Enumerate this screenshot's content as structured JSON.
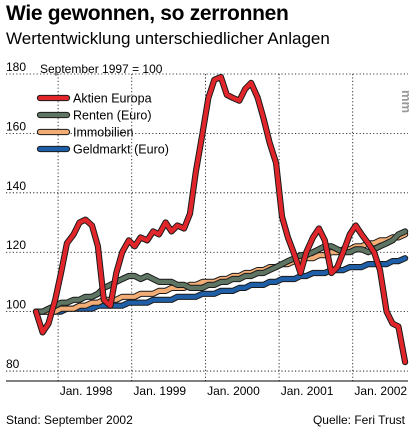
{
  "header": {
    "title": "Wie gewonnen, so zerronnen",
    "subtitle": "Wertentwicklung unterschiedlicher Anlagen"
  },
  "footer": {
    "stand": "Stand: September 2002",
    "source": "Quelle: Feri Trust"
  },
  "watermark": "mm",
  "chart_data": {
    "type": "line",
    "annotation": "September 1997 = 100",
    "ylim": [
      78,
      180
    ],
    "yticks": [
      80,
      100,
      120,
      140,
      160,
      180
    ],
    "xlim": [
      1997.7,
      2002.75
    ],
    "xticks": [
      {
        "label": "Jan. 1998",
        "x": 1998.0
      },
      {
        "label": "Jan. 1999",
        "x": 1999.0
      },
      {
        "label": "Jan. 2000",
        "x": 2000.0
      },
      {
        "label": "Jan. 2001",
        "x": 2001.0
      },
      {
        "label": "Jan. 2002",
        "x": 2002.0
      }
    ],
    "grid": true,
    "legend_position": "top-left",
    "series": [
      {
        "name": "Aktien Europa",
        "color": "#e0262b",
        "points": [
          [
            1997.7,
            100
          ],
          [
            1997.79,
            93
          ],
          [
            1997.87,
            96
          ],
          [
            1997.96,
            104
          ],
          [
            1998.04,
            113
          ],
          [
            1998.12,
            123
          ],
          [
            1998.21,
            126
          ],
          [
            1998.29,
            130
          ],
          [
            1998.37,
            131
          ],
          [
            1998.46,
            129
          ],
          [
            1998.54,
            122
          ],
          [
            1998.62,
            104
          ],
          [
            1998.71,
            102
          ],
          [
            1998.79,
            113
          ],
          [
            1998.87,
            120
          ],
          [
            1998.96,
            124
          ],
          [
            1999.04,
            122
          ],
          [
            1999.12,
            125
          ],
          [
            1999.21,
            124
          ],
          [
            1999.29,
            127
          ],
          [
            1999.37,
            126
          ],
          [
            1999.46,
            130
          ],
          [
            1999.54,
            127
          ],
          [
            1999.62,
            129
          ],
          [
            1999.71,
            128
          ],
          [
            1999.79,
            133
          ],
          [
            1999.87,
            147
          ],
          [
            1999.96,
            160
          ],
          [
            2000.04,
            172
          ],
          [
            2000.12,
            178
          ],
          [
            2000.21,
            179
          ],
          [
            2000.29,
            173
          ],
          [
            2000.37,
            172
          ],
          [
            2000.46,
            171
          ],
          [
            2000.54,
            175
          ],
          [
            2000.62,
            177
          ],
          [
            2000.71,
            172
          ],
          [
            2000.79,
            165
          ],
          [
            2000.87,
            157
          ],
          [
            2000.96,
            150
          ],
          [
            2001.04,
            132
          ],
          [
            2001.12,
            125
          ],
          [
            2001.21,
            119
          ],
          [
            2001.29,
            113
          ],
          [
            2001.37,
            120
          ],
          [
            2001.46,
            125
          ],
          [
            2001.54,
            128
          ],
          [
            2001.62,
            124
          ],
          [
            2001.71,
            113
          ],
          [
            2001.79,
            115
          ],
          [
            2001.87,
            120
          ],
          [
            2001.96,
            126
          ],
          [
            2002.04,
            129
          ],
          [
            2002.12,
            126
          ],
          [
            2002.21,
            123
          ],
          [
            2002.29,
            120
          ],
          [
            2002.37,
            114
          ],
          [
            2002.46,
            100
          ],
          [
            2002.54,
            96
          ],
          [
            2002.62,
            95
          ],
          [
            2002.71,
            83
          ]
        ]
      },
      {
        "name": "Renten (Euro)",
        "color": "#5e7563",
        "points": [
          [
            1997.7,
            100
          ],
          [
            1997.79,
            100
          ],
          [
            1997.87,
            101
          ],
          [
            1997.96,
            102
          ],
          [
            1998.04,
            103
          ],
          [
            1998.12,
            103
          ],
          [
            1998.21,
            104
          ],
          [
            1998.29,
            104
          ],
          [
            1998.37,
            105
          ],
          [
            1998.46,
            105
          ],
          [
            1998.54,
            106
          ],
          [
            1998.62,
            108
          ],
          [
            1998.71,
            109
          ],
          [
            1998.79,
            110
          ],
          [
            1998.87,
            111
          ],
          [
            1998.96,
            112
          ],
          [
            1999.04,
            112
          ],
          [
            1999.12,
            111
          ],
          [
            1999.21,
            112
          ],
          [
            1999.29,
            111
          ],
          [
            1999.37,
            110
          ],
          [
            1999.46,
            110
          ],
          [
            1999.54,
            110
          ],
          [
            1999.62,
            109
          ],
          [
            1999.71,
            109
          ],
          [
            1999.79,
            108
          ],
          [
            1999.87,
            108
          ],
          [
            1999.96,
            108
          ],
          [
            2000.04,
            109
          ],
          [
            2000.12,
            109
          ],
          [
            2000.21,
            110
          ],
          [
            2000.29,
            110
          ],
          [
            2000.37,
            111
          ],
          [
            2000.46,
            111
          ],
          [
            2000.54,
            112
          ],
          [
            2000.62,
            112
          ],
          [
            2000.71,
            113
          ],
          [
            2000.79,
            113
          ],
          [
            2000.87,
            114
          ],
          [
            2000.96,
            115
          ],
          [
            2001.04,
            116
          ],
          [
            2001.12,
            117
          ],
          [
            2001.21,
            118
          ],
          [
            2001.29,
            119
          ],
          [
            2001.37,
            119
          ],
          [
            2001.46,
            120
          ],
          [
            2001.54,
            121
          ],
          [
            2001.62,
            122
          ],
          [
            2001.71,
            122
          ],
          [
            2001.79,
            121
          ],
          [
            2001.87,
            120
          ],
          [
            2001.96,
            120
          ],
          [
            2002.04,
            121
          ],
          [
            2002.12,
            121
          ],
          [
            2002.21,
            120
          ],
          [
            2002.29,
            121
          ],
          [
            2002.37,
            122
          ],
          [
            2002.46,
            123
          ],
          [
            2002.54,
            124
          ],
          [
            2002.62,
            126
          ],
          [
            2002.71,
            127
          ]
        ]
      },
      {
        "name": "Immobilien",
        "color": "#f2ad76",
        "points": [
          [
            1997.7,
            100
          ],
          [
            1997.79,
            100
          ],
          [
            1997.87,
            100
          ],
          [
            1997.96,
            100
          ],
          [
            1998.04,
            101
          ],
          [
            1998.12,
            101
          ],
          [
            1998.21,
            101
          ],
          [
            1998.29,
            102
          ],
          [
            1998.37,
            102
          ],
          [
            1998.46,
            103
          ],
          [
            1998.54,
            103
          ],
          [
            1998.62,
            104
          ],
          [
            1998.71,
            104
          ],
          [
            1998.79,
            104
          ],
          [
            1998.87,
            105
          ],
          [
            1998.96,
            105
          ],
          [
            1999.04,
            105
          ],
          [
            1999.12,
            106
          ],
          [
            1999.21,
            106
          ],
          [
            1999.29,
            106
          ],
          [
            1999.37,
            107
          ],
          [
            1999.46,
            107
          ],
          [
            1999.54,
            108
          ],
          [
            1999.62,
            108
          ],
          [
            1999.71,
            108
          ],
          [
            1999.79,
            109
          ],
          [
            1999.87,
            109
          ],
          [
            1999.96,
            110
          ],
          [
            2000.04,
            110
          ],
          [
            2000.12,
            110
          ],
          [
            2000.21,
            111
          ],
          [
            2000.29,
            111
          ],
          [
            2000.37,
            112
          ],
          [
            2000.46,
            112
          ],
          [
            2000.54,
            113
          ],
          [
            2000.62,
            113
          ],
          [
            2000.71,
            114
          ],
          [
            2000.79,
            114
          ],
          [
            2000.87,
            115
          ],
          [
            2000.96,
            115
          ],
          [
            2001.04,
            116
          ],
          [
            2001.12,
            116
          ],
          [
            2001.21,
            117
          ],
          [
            2001.29,
            117
          ],
          [
            2001.37,
            118
          ],
          [
            2001.46,
            118
          ],
          [
            2001.54,
            119
          ],
          [
            2001.62,
            119
          ],
          [
            2001.71,
            120
          ],
          [
            2001.79,
            120
          ],
          [
            2001.87,
            121
          ],
          [
            2001.96,
            121
          ],
          [
            2002.04,
            122
          ],
          [
            2002.12,
            122
          ],
          [
            2002.21,
            123
          ],
          [
            2002.29,
            123
          ],
          [
            2002.37,
            124
          ],
          [
            2002.46,
            124
          ],
          [
            2002.54,
            125
          ],
          [
            2002.62,
            125
          ],
          [
            2002.71,
            126
          ]
        ]
      },
      {
        "name": "Geldmarkt (Euro)",
        "color": "#1f5fa8",
        "points": [
          [
            1997.7,
            100
          ],
          [
            1997.79,
            100
          ],
          [
            1997.87,
            100
          ],
          [
            1997.96,
            100
          ],
          [
            1998.04,
            100
          ],
          [
            1998.12,
            101
          ],
          [
            1998.21,
            101
          ],
          [
            1998.29,
            101
          ],
          [
            1998.37,
            101
          ],
          [
            1998.46,
            101
          ],
          [
            1998.54,
            102
          ],
          [
            1998.62,
            102
          ],
          [
            1998.71,
            102
          ],
          [
            1998.79,
            102
          ],
          [
            1998.87,
            102
          ],
          [
            1998.96,
            103
          ],
          [
            1999.04,
            103
          ],
          [
            1999.12,
            103
          ],
          [
            1999.21,
            103
          ],
          [
            1999.29,
            104
          ],
          [
            1999.37,
            104
          ],
          [
            1999.46,
            104
          ],
          [
            1999.54,
            104
          ],
          [
            1999.62,
            105
          ],
          [
            1999.71,
            105
          ],
          [
            1999.79,
            105
          ],
          [
            1999.87,
            105
          ],
          [
            1999.96,
            106
          ],
          [
            2000.04,
            106
          ],
          [
            2000.12,
            106
          ],
          [
            2000.21,
            107
          ],
          [
            2000.29,
            107
          ],
          [
            2000.37,
            107
          ],
          [
            2000.46,
            108
          ],
          [
            2000.54,
            108
          ],
          [
            2000.62,
            109
          ],
          [
            2000.71,
            109
          ],
          [
            2000.79,
            109
          ],
          [
            2000.87,
            110
          ],
          [
            2000.96,
            110
          ],
          [
            2001.04,
            111
          ],
          [
            2001.12,
            111
          ],
          [
            2001.21,
            111
          ],
          [
            2001.29,
            112
          ],
          [
            2001.37,
            112
          ],
          [
            2001.46,
            113
          ],
          [
            2001.54,
            113
          ],
          [
            2001.62,
            113
          ],
          [
            2001.71,
            114
          ],
          [
            2001.79,
            114
          ],
          [
            2001.87,
            114
          ],
          [
            2001.96,
            115
          ],
          [
            2002.04,
            115
          ],
          [
            2002.12,
            115
          ],
          [
            2002.21,
            116
          ],
          [
            2002.29,
            116
          ],
          [
            2002.37,
            116
          ],
          [
            2002.46,
            116
          ],
          [
            2002.54,
            117
          ],
          [
            2002.62,
            117
          ],
          [
            2002.71,
            118
          ]
        ]
      }
    ]
  }
}
